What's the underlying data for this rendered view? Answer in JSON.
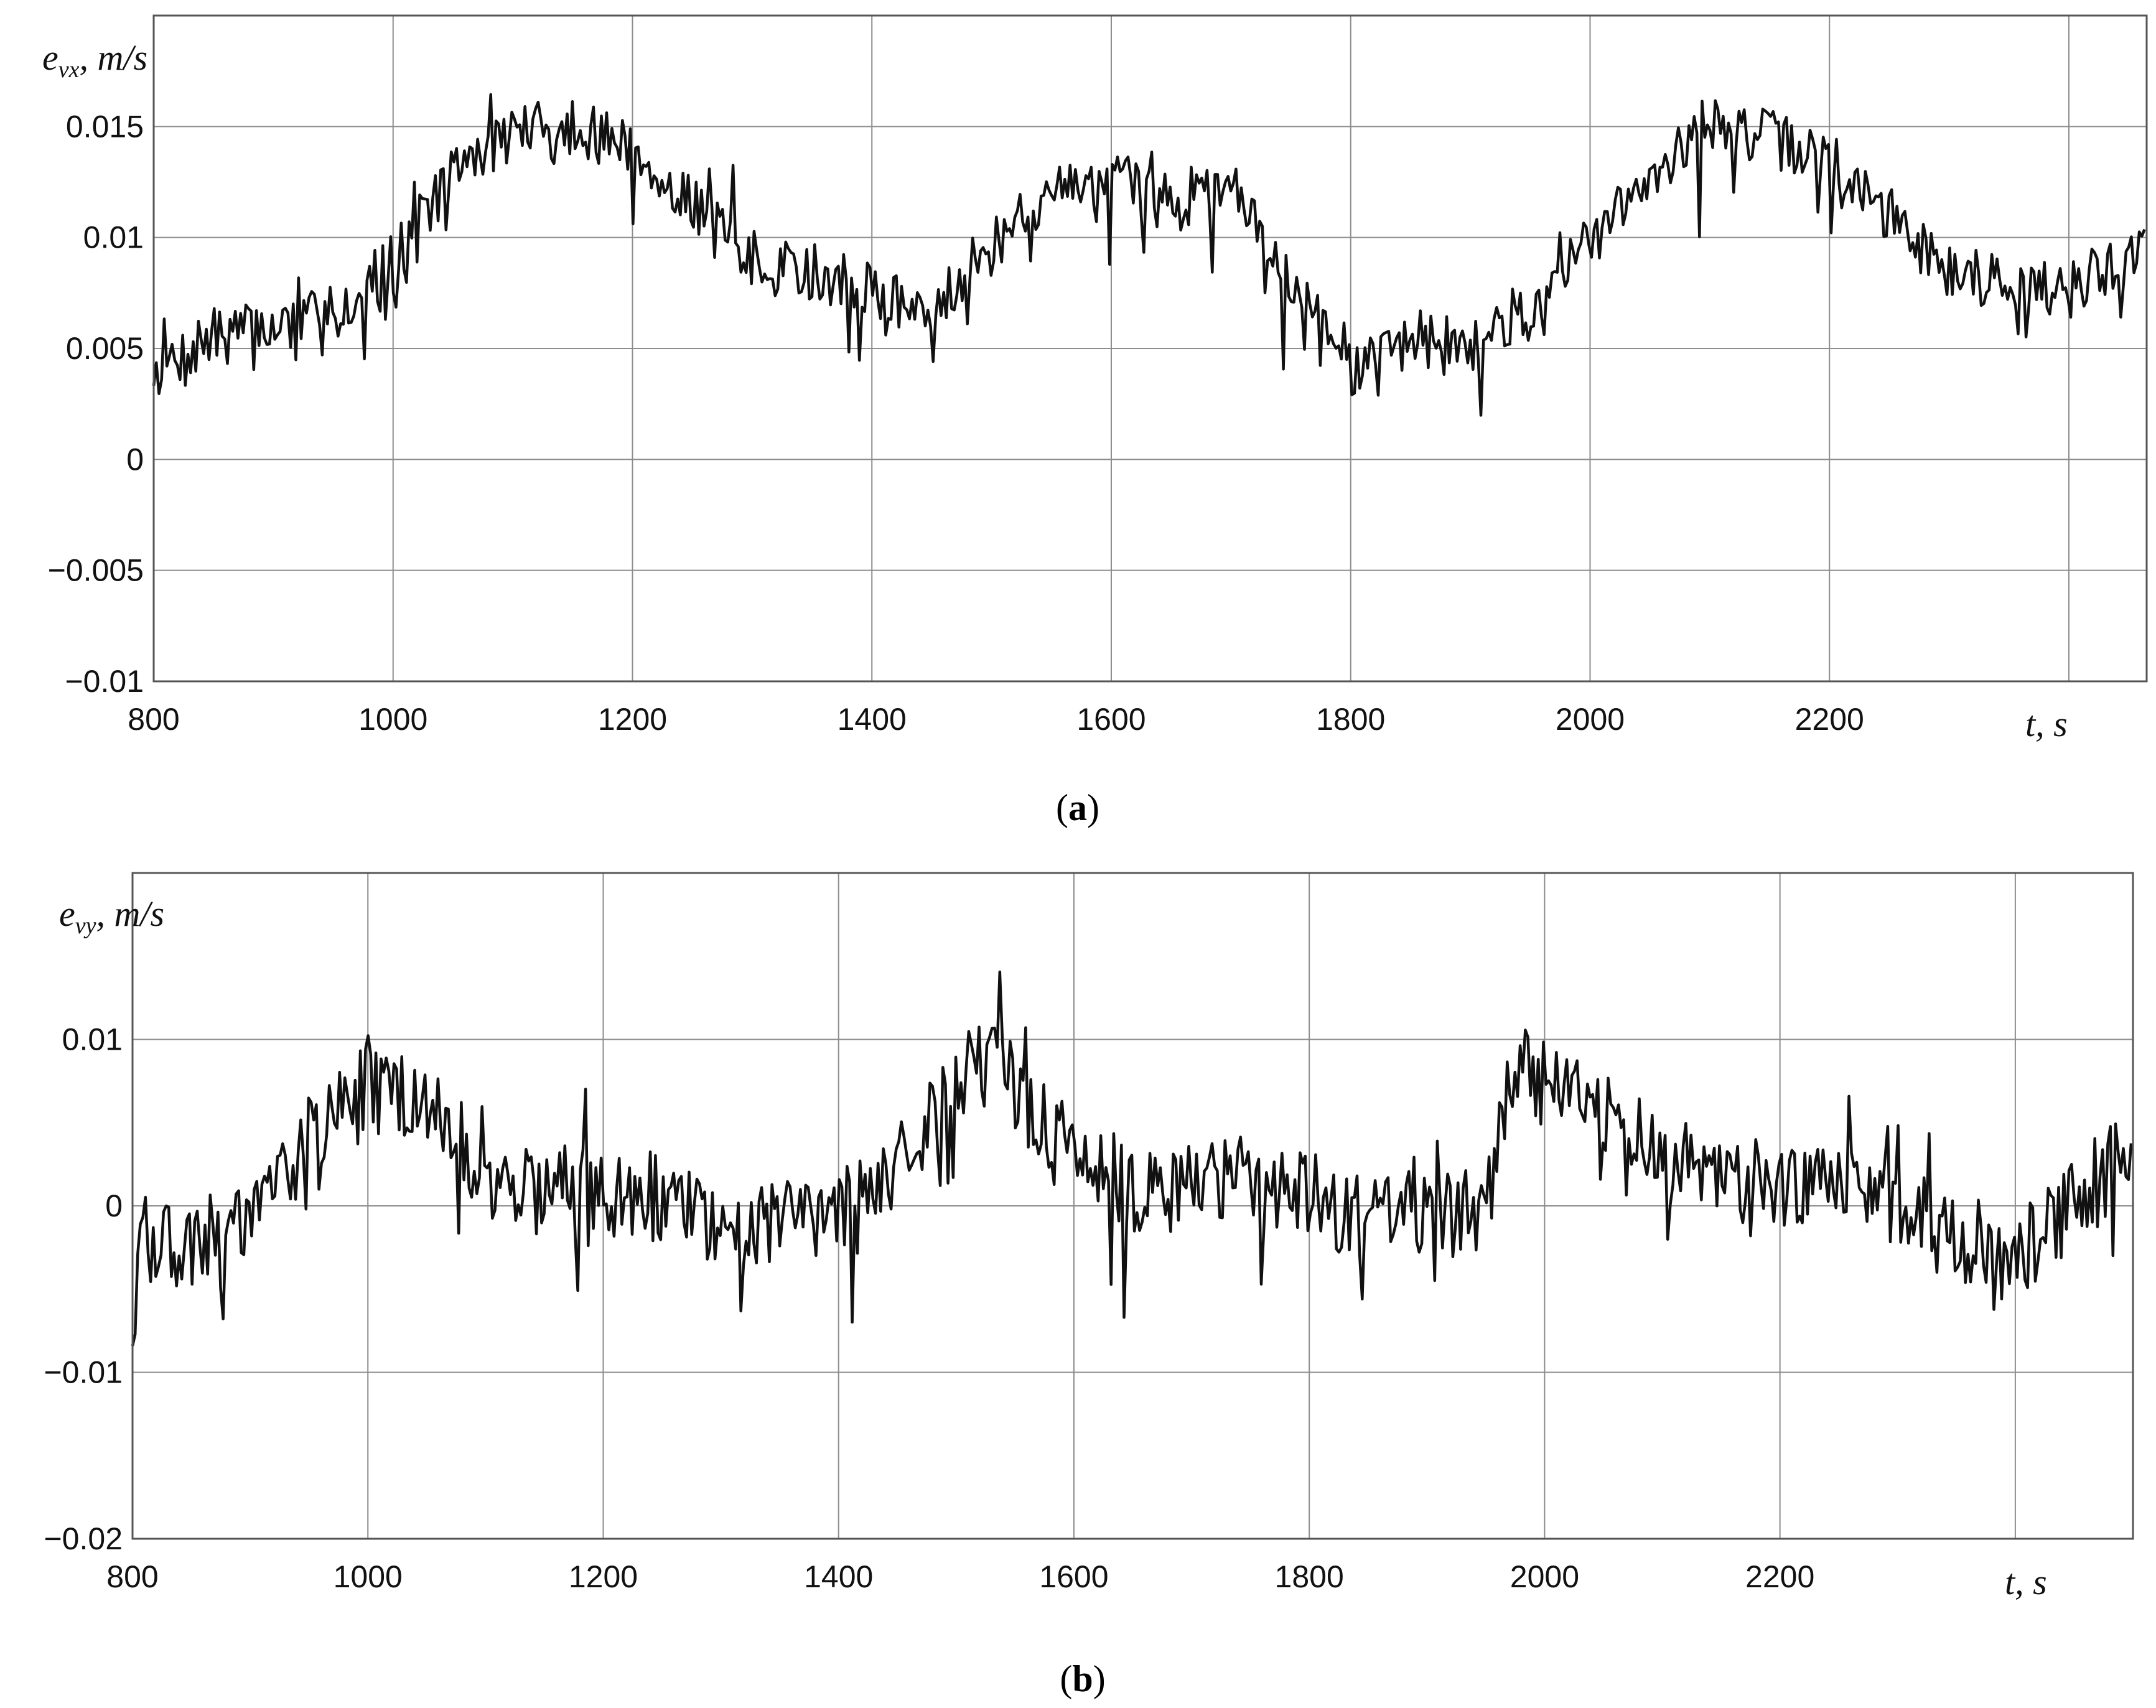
{
  "chart_data": [
    {
      "id": "a",
      "type": "line",
      "caption_letter": "a",
      "title": "",
      "xlabel": "t, s",
      "ylabel_symbol": "e",
      "ylabel_sub": "vx",
      "ylabel_unit": ", m/s",
      "xlim": [
        800,
        2465
      ],
      "ylim": [
        -0.01,
        0.02
      ],
      "x_ticks": [
        800,
        1000,
        1200,
        1400,
        1600,
        1800,
        2000,
        2200
      ],
      "x_tick_labels": [
        "800",
        "1000",
        "1200",
        "1400",
        "1600",
        "1800",
        "2000",
        "2200"
      ],
      "x_extra_grid": [
        2400
      ],
      "y_ticks": [
        -0.01,
        -0.005,
        0,
        0.005,
        0.01,
        0.015
      ],
      "y_tick_labels": [
        "−0.01",
        "−0.005",
        "0",
        "0.005",
        "0.01",
        "0.015"
      ],
      "grid": true,
      "line_color": "#111111",
      "series": [
        {
          "noise_amplitude": 0.0013,
          "spike_amplitude": 0.0035,
          "x": [
            800,
            850,
            900,
            950,
            1000,
            1050,
            1100,
            1150,
            1200,
            1250,
            1300,
            1350,
            1400,
            1450,
            1500,
            1550,
            1600,
            1650,
            1700,
            1750,
            1800,
            1850,
            1900,
            1950,
            2000,
            2050,
            2100,
            2150,
            2200,
            2250,
            2300,
            2350,
            2400,
            2465
          ],
          "y": [
            0.004,
            0.0055,
            0.006,
            0.0065,
            0.009,
            0.013,
            0.0148,
            0.015,
            0.014,
            0.0115,
            0.009,
            0.0085,
            0.0075,
            0.007,
            0.0095,
            0.012,
            0.0125,
            0.012,
            0.0125,
            0.008,
            0.004,
            0.0055,
            0.005,
            0.007,
            0.0095,
            0.013,
            0.015,
            0.0145,
            0.0135,
            0.011,
            0.0085,
            0.008,
            0.0075,
            0.0095
          ]
        }
      ]
    },
    {
      "id": "b",
      "type": "line",
      "caption_letter": "b",
      "title": "",
      "xlabel": "t, s",
      "ylabel_symbol": "e",
      "ylabel_sub": "vy",
      "ylabel_unit": ", m/s",
      "xlim": [
        800,
        2500
      ],
      "ylim": [
        -0.02,
        0.02
      ],
      "x_ticks": [
        800,
        1000,
        1200,
        1400,
        1600,
        1800,
        2000,
        2200
      ],
      "x_tick_labels": [
        "800",
        "1000",
        "1200",
        "1400",
        "1600",
        "1800",
        "2000",
        "2200"
      ],
      "x_extra_grid": [
        2400
      ],
      "y_ticks": [
        -0.02,
        -0.01,
        0,
        0.01
      ],
      "y_tick_labels": [
        "−0.02",
        "−0.01",
        "0",
        "0.01"
      ],
      "grid": true,
      "line_color": "#111111",
      "series": [
        {
          "noise_amplitude": 0.0028,
          "spike_amplitude": 0.006,
          "x": [
            800,
            850,
            900,
            950,
            1000,
            1050,
            1100,
            1150,
            1200,
            1250,
            1300,
            1350,
            1400,
            1450,
            1500,
            1530,
            1580,
            1650,
            1700,
            1750,
            1800,
            1850,
            1900,
            1950,
            1975,
            2000,
            2050,
            2100,
            2150,
            2200,
            2250,
            2300,
            2350,
            2400,
            2450,
            2500
          ],
          "y": [
            -0.002,
            -0.0025,
            0.0,
            0.004,
            0.0075,
            0.006,
            0.002,
            0.0008,
            0.001,
            0.0005,
            -0.001,
            -0.0005,
            0.0,
            0.002,
            0.007,
            0.009,
            0.004,
            0.001,
            0.001,
            0.0015,
            0.0005,
            -0.001,
            -0.0005,
            0.0,
            0.009,
            0.0075,
            0.0055,
            0.003,
            0.0015,
            0.0005,
            0.001,
            0.0,
            -0.002,
            -0.003,
            0.0,
            0.004
          ]
        }
      ]
    }
  ]
}
